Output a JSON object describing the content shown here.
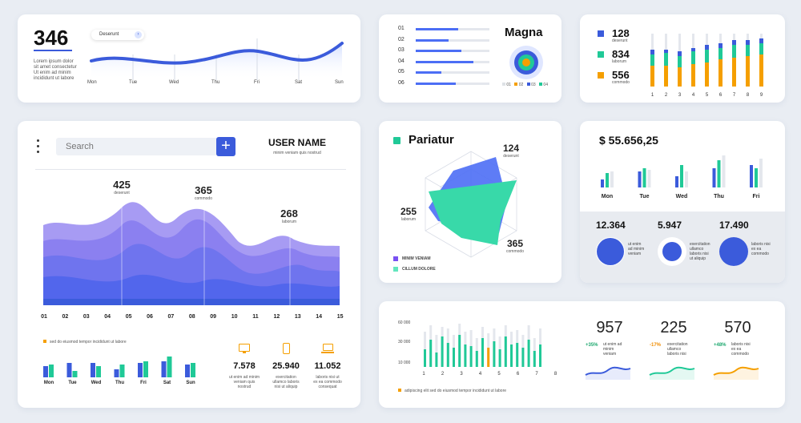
{
  "card1": {
    "value": "346",
    "desc": [
      "Lorem ipsum dolor",
      "sit amet consectetur",
      "Ut enim ad minim",
      "incididunt ut labore"
    ],
    "pill": "Deserunt",
    "days": [
      "Mon",
      "Tue",
      "Wed",
      "Thu",
      "Fri",
      "Sat",
      "Sun"
    ]
  },
  "card2": {
    "title": "Magna",
    "rows": [
      {
        "label": "01",
        "value": 0.58
      },
      {
        "label": "02",
        "value": 0.45
      },
      {
        "label": "03",
        "value": 0.62
      },
      {
        "label": "04",
        "value": 0.78
      },
      {
        "label": "05",
        "value": 0.35
      },
      {
        "label": "06",
        "value": 0.54
      }
    ],
    "legend": [
      "01",
      "02",
      "03",
      "04"
    ]
  },
  "card3": {
    "stats": [
      {
        "value": "128",
        "label": "deserunt",
        "color": "#3b5bdb"
      },
      {
        "value": "834",
        "label": "laborum",
        "color": "#20c997"
      },
      {
        "value": "556",
        "label": "commodo",
        "color": "#f59f00"
      }
    ],
    "xlabels": [
      "1",
      "2",
      "3",
      "4",
      "5",
      "6",
      "7",
      "8",
      "9"
    ]
  },
  "card4": {
    "search_placeholder": "Search",
    "user_name": "USER NAME",
    "user_sub": "minim veniam quis nostrud",
    "peaks": [
      {
        "value": "425",
        "label": "deserunt"
      },
      {
        "value": "365",
        "label": "commodo"
      },
      {
        "value": "268",
        "label": "laborum"
      }
    ],
    "xlabels": [
      "01",
      "02",
      "03",
      "04",
      "05",
      "06",
      "07",
      "08",
      "09",
      "10",
      "11",
      "12",
      "13",
      "14",
      "15"
    ],
    "legend": "sed do eiusmod tempor incididunt ut labore",
    "days": [
      "Mon",
      "Tue",
      "Wed",
      "Thu",
      "Fri",
      "Sat",
      "Sun"
    ],
    "stats": [
      {
        "value": "7.578",
        "desc": [
          "ut enim ad minim",
          "veniam quis",
          "nostrud"
        ]
      },
      {
        "value": "25.940",
        "desc": [
          "exercitation",
          "ullamco laboris",
          "nisi ut aliquip"
        ]
      },
      {
        "value": "11.052",
        "desc": [
          "laboris nisi ut",
          "ex ea commodo",
          "consequat"
        ]
      }
    ]
  },
  "card5": {
    "title": "Pariatur",
    "labels": [
      {
        "value": "124",
        "label": "deserunt"
      },
      {
        "value": "255",
        "label": "laborum"
      },
      {
        "value": "365",
        "label": "commodo"
      }
    ],
    "legend": [
      "MINIM VENIAM",
      "CILLUM DOLORE"
    ]
  },
  "card6": {
    "amount": "$ 55.656,25",
    "days": [
      "Mon",
      "Tue",
      "Wed",
      "Thu",
      "Fri"
    ],
    "stats": [
      {
        "value": "12.364",
        "desc": [
          "ut enim",
          "ad minim",
          "veniam"
        ]
      },
      {
        "value": "5.947",
        "desc": [
          "exercitation",
          "ullamco",
          "laboris nisi",
          "ut aliquip"
        ]
      },
      {
        "value": "17.490",
        "desc": [
          "laboris nisi",
          "ex ea",
          "commodo"
        ]
      }
    ]
  },
  "card7": {
    "yticks": [
      "60 000",
      "30 000",
      "10 000"
    ],
    "xlabels": [
      "1",
      "2",
      "3",
      "4",
      "5",
      "6",
      "7",
      "8"
    ],
    "legend": "adipiscing elit sed do eiusmod tempor incididunt ut labore",
    "stats": [
      {
        "value": "957",
        "pct": "+35%",
        "desc": [
          "ut enim ad",
          "minim",
          "veniam"
        ]
      },
      {
        "value": "225",
        "pct": "-17%",
        "desc": [
          "exercitation",
          "ullamco",
          "laboris nisi"
        ]
      },
      {
        "value": "570",
        "pct": "+48%",
        "desc": [
          "laboris nisi",
          "ex ea",
          "commodo"
        ]
      }
    ]
  }
}
